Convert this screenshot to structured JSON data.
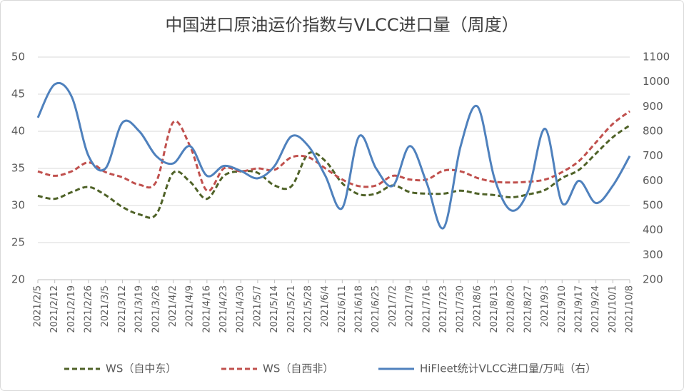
{
  "chart_data": {
    "type": "line",
    "title": "中国进口原油运价指数与VLCC进口量（周度）",
    "categories": [
      "2021/2/5",
      "2021/2/12",
      "2021/2/19",
      "2021/2/26",
      "2021/3/5",
      "2021/3/12",
      "2021/3/19",
      "2021/3/26",
      "2021/4/2",
      "2021/4/9",
      "2021/4/16",
      "2021/4/23",
      "2021/4/30",
      "2021/5/7",
      "2021/5/14",
      "2021/5/21",
      "2021/5/28",
      "2021/6/4",
      "2021/6/11",
      "2021/6/18",
      "2021/6/25",
      "2021/7/2",
      "2021/7/9",
      "2021/7/16",
      "2021/7/23",
      "2021/7/30",
      "2021/8/6",
      "2021/8/13",
      "2021/8/20",
      "2021/8/27",
      "2021/9/3",
      "2021/9/10",
      "2021/9/17",
      "2021/9/24",
      "2021/10/1",
      "2021/10/8"
    ],
    "series": [
      {
        "name": "WS（自中东）",
        "color": "#4f6228",
        "dash": true,
        "values": [
          31.3,
          30.9,
          31.8,
          32.5,
          31.4,
          29.8,
          28.8,
          28.8,
          34.4,
          33.2,
          30.9,
          34.0,
          34.6,
          34.4,
          32.7,
          32.6,
          37.0,
          36.0,
          33.0,
          31.5,
          31.6,
          32.7,
          31.8,
          31.6,
          31.6,
          32.0,
          31.6,
          31.4,
          31.1,
          31.5,
          32.1,
          33.7,
          34.8,
          37.0,
          39.2,
          40.8
        ]
      },
      {
        "name": "WS（自西非）",
        "color": "#c0504d",
        "dash": true,
        "values": [
          34.6,
          34.0,
          34.6,
          35.8,
          34.5,
          33.8,
          32.8,
          33.2,
          41.2,
          38.0,
          32.0,
          35.0,
          34.6,
          35.0,
          34.8,
          36.5,
          36.5,
          35.0,
          33.5,
          32.6,
          32.7,
          34.0,
          33.5,
          33.5,
          34.7,
          34.6,
          33.7,
          33.2,
          33.1,
          33.2,
          33.5,
          34.5,
          36.0,
          38.5,
          41.0,
          42.7
        ]
      },
      {
        "name": "HiFleet统计VLCC进口量/万吨（右）",
        "color": "#4f81bd",
        "dash": false,
        "axis": "y2",
        "values": [
          855,
          990,
          940,
          700,
          650,
          835,
          800,
          700,
          670,
          740,
          620,
          660,
          640,
          610,
          660,
          780,
          740,
          620,
          490,
          780,
          650,
          580,
          740,
          590,
          410,
          740,
          900,
          610,
          480,
          560,
          810,
          510,
          600,
          510,
          580,
          700
        ]
      }
    ],
    "ylim": [
      20,
      50
    ],
    "yticks": [
      20,
      25,
      30,
      35,
      40,
      45,
      50
    ],
    "y2lim": [
      200,
      1100
    ],
    "y2ticks": [
      200,
      300,
      400,
      500,
      600,
      700,
      800,
      900,
      1000,
      1100
    ],
    "grid": true,
    "legend": "bottom"
  }
}
